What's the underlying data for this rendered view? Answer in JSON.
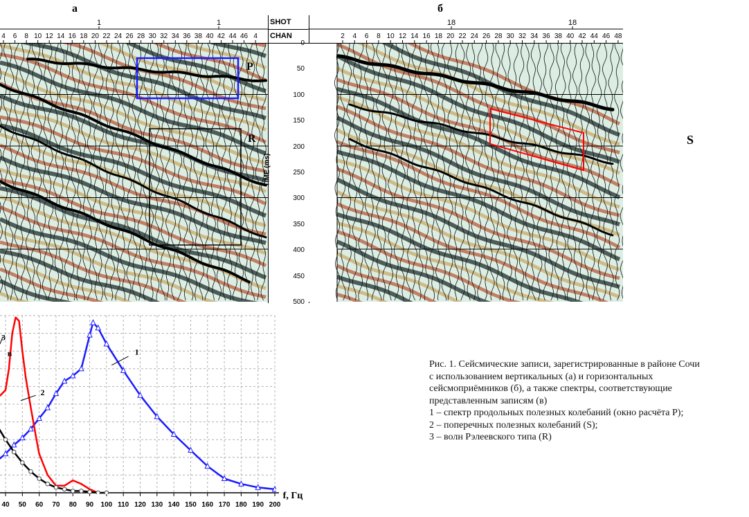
{
  "panel_a": {
    "letter": "а",
    "shot_values": [
      "1",
      "1"
    ],
    "chan_ticks": [
      "4",
      "6",
      "8",
      "10",
      "12",
      "14",
      "16",
      "18",
      "20",
      "22",
      "24",
      "26",
      "28",
      "30",
      "32",
      "34",
      "36",
      "38",
      "40",
      "42",
      "44",
      "46",
      "4"
    ],
    "label_p": "P",
    "label_r": "R"
  },
  "panel_b": {
    "letter": "б",
    "shot_values": [
      "18",
      "18"
    ],
    "chan_ticks": [
      "2",
      "4",
      "6",
      "8",
      "10",
      "12",
      "14",
      "16",
      "18",
      "20",
      "22",
      "24",
      "26",
      "28",
      "30",
      "32",
      "34",
      "36",
      "38",
      "40",
      "42",
      "44",
      "46",
      "48"
    ],
    "label_s": "S"
  },
  "axis_center": {
    "shot_label": "SHOT",
    "chan_label": "CHAN",
    "time_label": "TIME (ms)",
    "time_ticks": [
      "0",
      "50",
      "100",
      "150",
      "200",
      "250",
      "300",
      "350",
      "400",
      "450",
      "500"
    ]
  },
  "chart_data": {
    "type": "line",
    "panel_letter": "в",
    "xlabel": "f, Гц",
    "ylabel": "",
    "xlim": [
      40,
      200
    ],
    "x_ticks": [
      "40",
      "50",
      "60",
      "70",
      "80",
      "90",
      "100",
      "110",
      "120",
      "130",
      "140",
      "150",
      "160",
      "170",
      "180",
      "190",
      "200"
    ],
    "series": [
      {
        "name": "1",
        "color": "#1a1aff",
        "marker": "triangle",
        "x": [
          35,
          40,
          45,
          50,
          55,
          60,
          65,
          70,
          75,
          80,
          85,
          90,
          92,
          95,
          100,
          110,
          120,
          130,
          140,
          150,
          160,
          170,
          180,
          190,
          200
        ],
        "y": [
          0.18,
          0.22,
          0.27,
          0.31,
          0.36,
          0.42,
          0.48,
          0.56,
          0.63,
          0.66,
          0.7,
          0.89,
          0.96,
          0.93,
          0.84,
          0.69,
          0.55,
          0.43,
          0.33,
          0.24,
          0.15,
          0.08,
          0.05,
          0.03,
          0.02
        ]
      },
      {
        "name": "2",
        "color": "#ff0000",
        "marker": "none",
        "x": [
          33,
          37,
          40,
          42,
          44,
          46,
          48,
          50,
          52,
          55,
          58,
          60,
          65,
          70,
          75,
          80,
          85,
          90,
          95
        ],
        "y": [
          0.53,
          0.55,
          0.58,
          0.7,
          0.9,
          0.99,
          0.97,
          0.8,
          0.65,
          0.48,
          0.32,
          0.22,
          0.1,
          0.04,
          0.04,
          0.07,
          0.05,
          0.02,
          0.0
        ]
      },
      {
        "name": "3",
        "color": "#000000",
        "marker": "circle",
        "x": [
          33,
          35,
          40,
          45,
          50,
          55,
          60,
          65,
          70,
          75,
          80,
          85,
          90,
          95,
          100
        ],
        "y": [
          0.42,
          0.38,
          0.3,
          0.23,
          0.17,
          0.12,
          0.08,
          0.05,
          0.03,
          0.02,
          0.01,
          0.01,
          0.005,
          0.0,
          0.0
        ]
      }
    ]
  },
  "caption": {
    "lines": [
      "Рис. 1. Сейсмические записи, зарегистрированные в районе Сочи",
      "с  использованием вертикальных (а) и горизонтальных",
      "сейсмоприёмников (б), а также спектры,  соответствующие",
      "представленным записям (в)",
      "1 – спектр продольных полезных колебаний (окно расчёта P);",
      "2 – поперечных полезных колебаний (S);",
      "3 – волн Рэлеевского типа (R)"
    ]
  }
}
